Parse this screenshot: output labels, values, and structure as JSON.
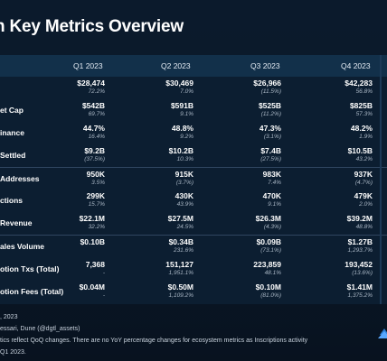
{
  "page": {
    "title": "n Key Metrics Overview"
  },
  "table": {
    "headers": [
      "Q1 2023",
      "Q2 2023",
      "Q3 2023",
      "Q4 2023"
    ],
    "rows": [
      {
        "label": "",
        "cells": [
          {
            "value": "$28,474",
            "change": "72.2%"
          },
          {
            "value": "$30,469",
            "change": "7.0%"
          },
          {
            "value": "$26,966",
            "change": "(11.5%)"
          },
          {
            "value": "$42,283",
            "change": "56.8%"
          }
        ]
      },
      {
        "label": "et Cap",
        "cells": [
          {
            "value": "$542B",
            "change": "69.7%"
          },
          {
            "value": "$591B",
            "change": "9.1%"
          },
          {
            "value": "$525B",
            "change": "(11.2%)"
          },
          {
            "value": "$825B",
            "change": "57.3%"
          }
        ]
      },
      {
        "label": "inance",
        "cells": [
          {
            "value": "44.7%",
            "change": "16.4%"
          },
          {
            "value": "48.8%",
            "change": "9.2%"
          },
          {
            "value": "47.3%",
            "change": "(3.1%)"
          },
          {
            "value": "48.2%",
            "change": "1.9%"
          }
        ]
      },
      {
        "label": "Settled",
        "cells": [
          {
            "value": "$9.2B",
            "change": "(37.5%)"
          },
          {
            "value": "$10.2B",
            "change": "10.3%"
          },
          {
            "value": "$7.4B",
            "change": "(27.5%)"
          },
          {
            "value": "$10.5B",
            "change": "43.2%"
          }
        ]
      },
      {
        "label": "Addresses",
        "cells": [
          {
            "value": "950K",
            "change": "3.5%"
          },
          {
            "value": "915K",
            "change": "(3.7%)"
          },
          {
            "value": "983K",
            "change": "7.4%"
          },
          {
            "value": "937K",
            "change": "(4.7%)"
          }
        ]
      },
      {
        "label": "ctions",
        "cells": [
          {
            "value": "299K",
            "change": "15.7%"
          },
          {
            "value": "430K",
            "change": "43.9%"
          },
          {
            "value": "470K",
            "change": "9.1%"
          },
          {
            "value": "479K",
            "change": "2.0%"
          }
        ]
      },
      {
        "label": "Revenue",
        "cells": [
          {
            "value": "$22.1M",
            "change": "32.2%"
          },
          {
            "value": "$27.5M",
            "change": "24.5%"
          },
          {
            "value": "$26.3M",
            "change": "(4.3%)"
          },
          {
            "value": "$39.2M",
            "change": "48.8%"
          }
        ]
      },
      {
        "label": "ales Volume",
        "cells": [
          {
            "value": "$0.10B",
            "change": ""
          },
          {
            "value": "$0.34B",
            "change": "231.6%"
          },
          {
            "value": "$0.09B",
            "change": "(73.1%)"
          },
          {
            "value": "$1.27B",
            "change": "1,293.7%"
          }
        ]
      },
      {
        "label": "otion Txs (Total)",
        "cells": [
          {
            "value": "7,368",
            "change": "-"
          },
          {
            "value": "151,127",
            "change": "1,951.1%"
          },
          {
            "value": "223,859",
            "change": "48.1%"
          },
          {
            "value": "193,452",
            "change": "(13.6%)"
          }
        ]
      },
      {
        "label": "otion Fees (Total)",
        "cells": [
          {
            "value": "$0.04M",
            "change": "-"
          },
          {
            "value": "$0.50M",
            "change": "1,109.2%"
          },
          {
            "value": "$0.10M",
            "change": "(81.0%)"
          },
          {
            "value": "$1.41M",
            "change": "1,375.2%"
          }
        ]
      }
    ]
  },
  "notes": [
    ", 2023",
    "essari, Dune (@dgtl_assets)",
    "tics reflect QoQ changes. There are no YoY percentage changes for ecosystem metrics as Inscriptions activity",
    "Q1 2023."
  ],
  "colors": {
    "background": "#0a1828",
    "header_bg": "#12304a",
    "text": "#ffffff",
    "muted": "#a9b6c4"
  }
}
